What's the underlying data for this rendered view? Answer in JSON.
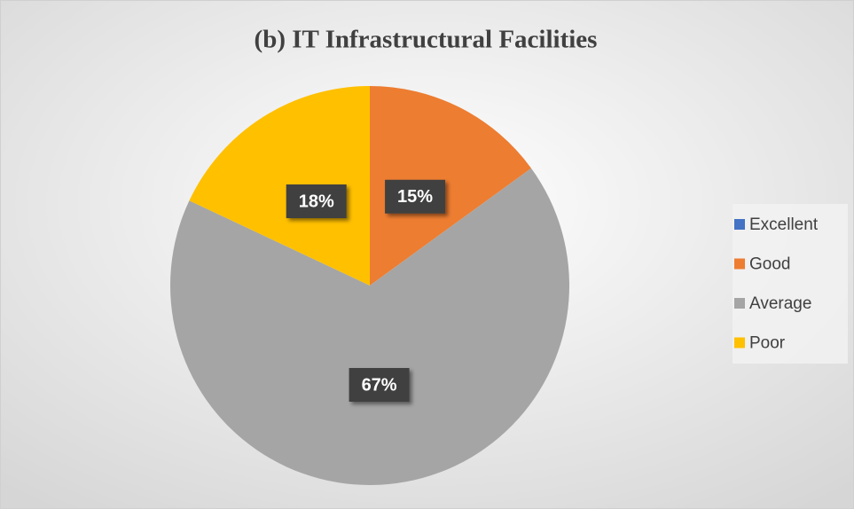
{
  "chart_data": {
    "type": "pie",
    "title": "(b) IT Infrastructural Facilities",
    "categories": [
      "Excellent",
      "Good",
      "Average",
      "Poor"
    ],
    "values": [
      0,
      15,
      67,
      18
    ],
    "value_labels": [
      null,
      "15%",
      "67%",
      "18%"
    ],
    "colors": [
      "#4472c4",
      "#ed7d31",
      "#a5a5a5",
      "#ffc000"
    ],
    "legend": "right"
  }
}
